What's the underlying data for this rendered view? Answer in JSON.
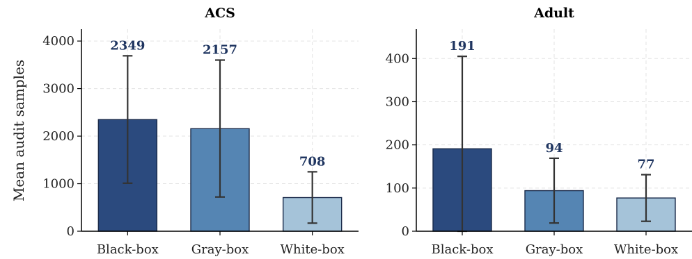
{
  "figure": {
    "shared_ylabel": "Mean audit samples"
  },
  "chart_data": [
    {
      "type": "bar",
      "title": "ACS",
      "categories": [
        "Black-box",
        "Gray-box",
        "White-box"
      ],
      "values": [
        2349,
        2157,
        708
      ],
      "value_labels": [
        "2349",
        "2157",
        "708"
      ],
      "error_low": [
        1010,
        720,
        170
      ],
      "error_high": [
        3690,
        3600,
        1250
      ],
      "colors": [
        "#2b4a7e",
        "#5585b3",
        "#a5c3d9"
      ],
      "ylabel": "Mean audit samples",
      "ylim": [
        0,
        4250
      ],
      "yticks": [
        0,
        1000,
        2000,
        3000,
        4000
      ],
      "ytick_labels": [
        "0",
        "1000",
        "2000",
        "3000",
        "4000"
      ],
      "grid": true
    },
    {
      "type": "bar",
      "title": "Adult",
      "categories": [
        "Black-box",
        "Gray-box",
        "White-box"
      ],
      "values": [
        191,
        94,
        77
      ],
      "value_labels": [
        "191",
        "94",
        "77"
      ],
      "error_low": [
        0,
        19,
        23
      ],
      "error_high": [
        405,
        169,
        131
      ],
      "colors": [
        "#2b4a7e",
        "#5585b3",
        "#a5c3d9"
      ],
      "ylabel": "",
      "ylim": [
        0,
        468
      ],
      "yticks": [
        0,
        100,
        200,
        300,
        400
      ],
      "ytick_labels": [
        "0",
        "100",
        "200",
        "300",
        "400"
      ],
      "grid": true
    }
  ]
}
